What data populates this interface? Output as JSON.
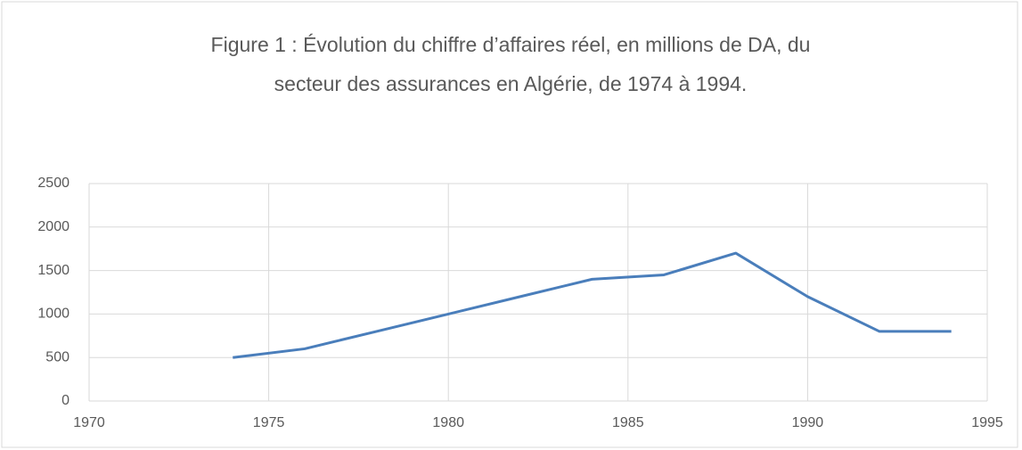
{
  "chart_data": {
    "type": "line",
    "title": "Figure 1 : Évolution du chiffre d’affaires réel, en millions de DA, du secteur des assurances en Algérie, de 1974 à 1994.",
    "x": [
      1974,
      1976,
      1978,
      1980,
      1982,
      1984,
      1986,
      1988,
      1990,
      1992,
      1994
    ],
    "series": [
      {
        "name": "Chiffre d’affaires réel",
        "color": "#4a7ebb",
        "values": [
          500,
          600,
          800,
          1000,
          1200,
          1400,
          1450,
          1700,
          1200,
          800,
          800
        ]
      }
    ],
    "xlim": [
      1970,
      1995
    ],
    "xticks": [
      1970,
      1975,
      1980,
      1985,
      1990,
      1995
    ],
    "ylim": [
      0,
      2500
    ],
    "yticks": [
      0,
      500,
      1000,
      1500,
      2000,
      2500
    ],
    "grid": true
  }
}
